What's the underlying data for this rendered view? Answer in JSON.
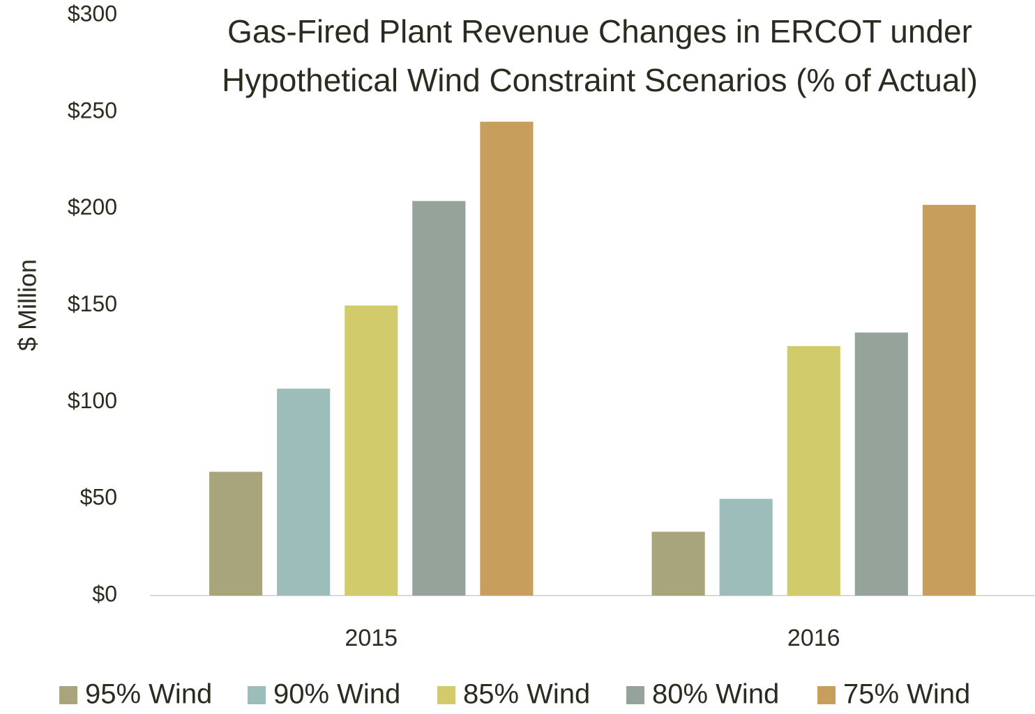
{
  "chart_data": {
    "type": "bar",
    "title": "Gas-Fired Plant Revenue Changes in ERCOT under Hypothetical Wind Constraint Scenarios (% of Actual)",
    "y_label": "$ Million",
    "categories": [
      "2015",
      "2016"
    ],
    "series": [
      {
        "name": "95% Wind",
        "color": "#a8a57c",
        "values": [
          64,
          33
        ]
      },
      {
        "name": "90% Wind",
        "color": "#9dbdbb",
        "values": [
          107,
          50
        ]
      },
      {
        "name": "85% Wind",
        "color": "#d2cb6c",
        "values": [
          150,
          129
        ]
      },
      {
        "name": "80% Wind",
        "color": "#95a39a",
        "values": [
          204,
          136
        ]
      },
      {
        "name": "75% Wind",
        "color": "#c89e5c",
        "values": [
          245,
          202
        ]
      }
    ],
    "ylim": [
      0,
      300
    ],
    "yticks": [
      {
        "value": 0,
        "label": "$0"
      },
      {
        "value": 50,
        "label": "$50"
      },
      {
        "value": 100,
        "label": "$100"
      },
      {
        "value": 150,
        "label": "$150"
      },
      {
        "value": 200,
        "label": "$200"
      },
      {
        "value": 250,
        "label": "$250"
      },
      {
        "value": 300,
        "label": "$300"
      }
    ],
    "grid": false,
    "legend": "bottom"
  }
}
